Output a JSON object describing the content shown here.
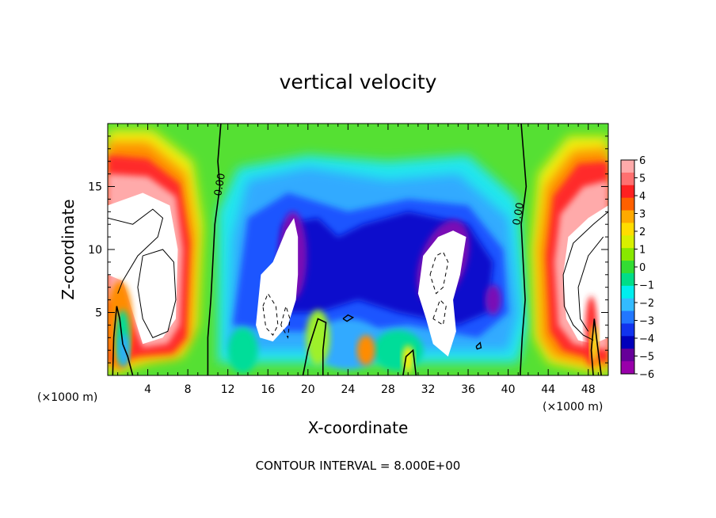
{
  "chart_data": {
    "type": "heatmap",
    "title": "vertical velocity",
    "xlabel": "X-coordinate",
    "ylabel": "Z-coordinate",
    "x_unit_left": "(×1000 m)",
    "x_unit_right": "(×1000 m)",
    "xlim": [
      0,
      50
    ],
    "ylim": [
      0,
      20
    ],
    "x_ticks": [
      "4",
      "8",
      "12",
      "16",
      "20",
      "24",
      "28",
      "32",
      "36",
      "40",
      "44",
      "48"
    ],
    "y_ticks": [
      "5",
      "10",
      "15"
    ],
    "colorbar": {
      "labels": [
        "6",
        "5",
        "4",
        "3",
        "2",
        "1",
        "0",
        "−1",
        "−2",
        "−3",
        "−4",
        "−5",
        "−6"
      ],
      "range": [
        -6,
        6
      ],
      "colors": [
        "#ffaaaa",
        "#ff7070",
        "#ff2020",
        "#ff6000",
        "#ffaa00",
        "#ffdd00",
        "#d8f000",
        "#88e800",
        "#33dd33",
        "#00dd88",
        "#00eeee",
        "#33bbff",
        "#2277ff",
        "#1133ee",
        "#0000bb",
        "#660099",
        "#9900aa"
      ]
    },
    "contour_labels": [
      "0.00",
      "0.00"
    ],
    "footer": "CONTOUR INTERVAL = 8.000E+00"
  }
}
